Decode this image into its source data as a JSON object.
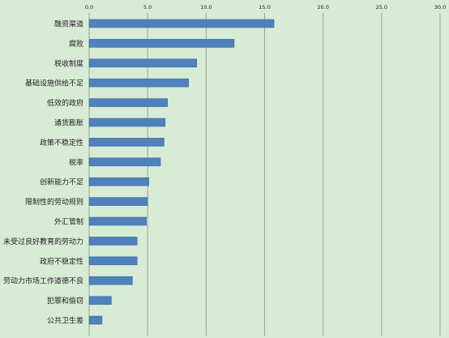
{
  "chart_data": {
    "type": "bar",
    "orientation": "horizontal",
    "categories": [
      "融资渠道",
      "腐败",
      "税收制度",
      "基础设施供给不足",
      "低效的政府",
      "通货膨胀",
      "政策不稳定性",
      "税率",
      "创新能力不足",
      "限制性的劳动规则",
      "外汇管制",
      "未受过良好教育的劳动力",
      "政府不稳定性",
      "劳动力市场工作道德不良",
      "犯罪和偷窃",
      "公共卫生差"
    ],
    "values": [
      15.8,
      12.4,
      9.2,
      8.5,
      6.7,
      6.5,
      6.4,
      6.1,
      5.1,
      5.0,
      4.9,
      4.1,
      4.1,
      3.7,
      1.9,
      1.1
    ],
    "xlim": [
      0,
      30
    ],
    "xticks": [
      "0.0",
      "5.0",
      "10.0",
      "15.0",
      "20.0",
      "25.0",
      "30.0"
    ],
    "xtick_values": [
      0,
      5,
      10,
      15,
      20,
      25,
      30
    ],
    "axis_position": "top",
    "grid": true,
    "legend": "none",
    "colors": {
      "bar": "#4f81bd",
      "bar_edge": "#3f6da6",
      "background": "#d8ecd5",
      "grid": "#9aa59a",
      "text": "#222222"
    }
  }
}
